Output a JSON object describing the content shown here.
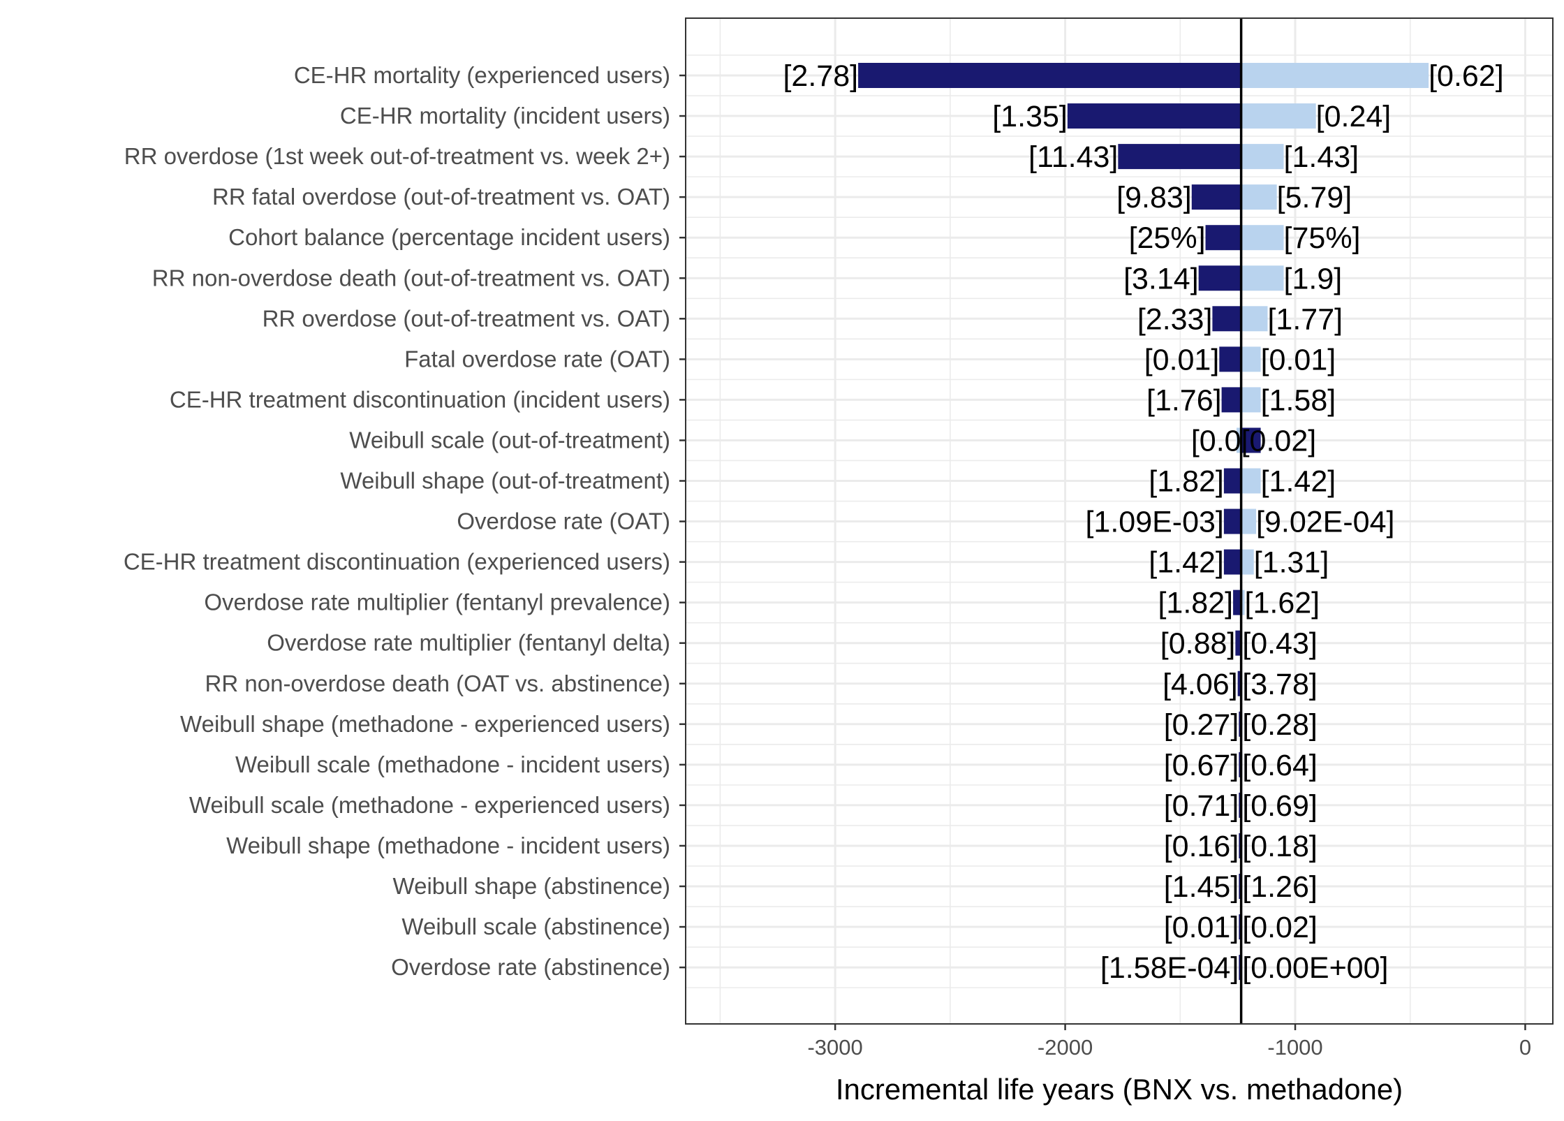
{
  "chart_data": {
    "type": "bar",
    "orientation": "horizontal",
    "subtype": "tornado",
    "title": "",
    "xlabel": "Incremental life years (BNX vs. methadone)",
    "ylabel": "",
    "xlim": [
      -3650,
      120
    ],
    "x_ticks": [
      -3000,
      -2000,
      -1000,
      0
    ],
    "x_tick_labels": [
      "-3000",
      "-2000",
      "-1000",
      "0"
    ],
    "baseline": -1235,
    "grid": true,
    "legend": "none",
    "colors": {
      "low": "#191970",
      "high": "#b9d3ee",
      "baseline": "#000000",
      "grid": "#ebebeb",
      "panel_border": "#333333"
    },
    "categories": [
      "CE-HR mortality (experienced users)",
      "CE-HR mortality (incident users)",
      "RR overdose (1st week out-of-treatment vs. week 2+)",
      "RR fatal overdose (out-of-treatment vs. OAT)",
      "Cohort balance (percentage incident users)",
      "RR non-overdose death (out-of-treatment vs. OAT)",
      "RR overdose (out-of-treatment vs. OAT)",
      "Fatal overdose rate (OAT)",
      "CE-HR treatment discontinuation (incident users)",
      "Weibull scale (out-of-treatment)",
      "Weibull shape (out-of-treatment)",
      "Overdose rate (OAT)",
      "CE-HR treatment discontinuation (experienced users)",
      "Overdose rate multiplier (fentanyl prevalence)",
      "Overdose rate multiplier (fentanyl delta)",
      "RR non-overdose death (OAT vs. abstinence)",
      "Weibull shape (methadone - experienced users)",
      "Weibull scale (methadone - incident users)",
      "Weibull scale (methadone - experienced users)",
      "Weibull shape (methadone - incident users)",
      "Weibull shape (abstinence)",
      "Weibull scale (abstinence)",
      "Overdose rate (abstinence)"
    ],
    "series": [
      {
        "values": [
          -2900,
          -1990,
          -1770,
          -1450,
          -1390,
          -1420,
          -1360,
          -1330,
          -1320,
          -1150,
          -1310,
          -1310,
          -1310,
          -1270,
          -1260,
          -1250,
          -1245,
          -1245,
          -1245,
          -1245,
          -1245,
          -1245,
          -1245
        ],
        "labels": [
          "[2.78]",
          "[1.35]",
          "[11.43]",
          "[9.83]",
          "[25%]",
          "[3.14]",
          "[2.33]",
          "[0.01]",
          "[1.76]",
          "[0.0",
          "[1.82]",
          "[1.09E-03]",
          "[1.42]",
          "[1.82]",
          "[0.88]",
          "[4.06]",
          "[0.27]",
          "[0.67]",
          "[0.71]",
          "[0.16]",
          "[1.45]",
          "[0.01]",
          "[1.58E-04]"
        ]
      },
      {
        "values": [
          -420,
          -910,
          -1050,
          -1080,
          -1050,
          -1050,
          -1120,
          -1150,
          -1150,
          -1255,
          -1150,
          -1170,
          -1180,
          -1220,
          -1230,
          -1230,
          -1230,
          -1230,
          -1230,
          -1230,
          -1230,
          -1230,
          -1230
        ],
        "labels": [
          "[0.62]",
          "[0.24]",
          "[1.43]",
          "[5.79]",
          "[75%]",
          "[1.9]",
          "[1.77]",
          "[0.01]",
          "[1.58]",
          "[0.02]",
          "[1.42]",
          "[9.02E-04]",
          "[1.31]",
          "[1.62]",
          "[0.43]",
          "[3.78]",
          "[0.28]",
          "[0.64]",
          "[0.69]",
          "[0.18]",
          "[1.26]",
          "[0.02]",
          "[0.00E+00]"
        ]
      }
    ]
  }
}
